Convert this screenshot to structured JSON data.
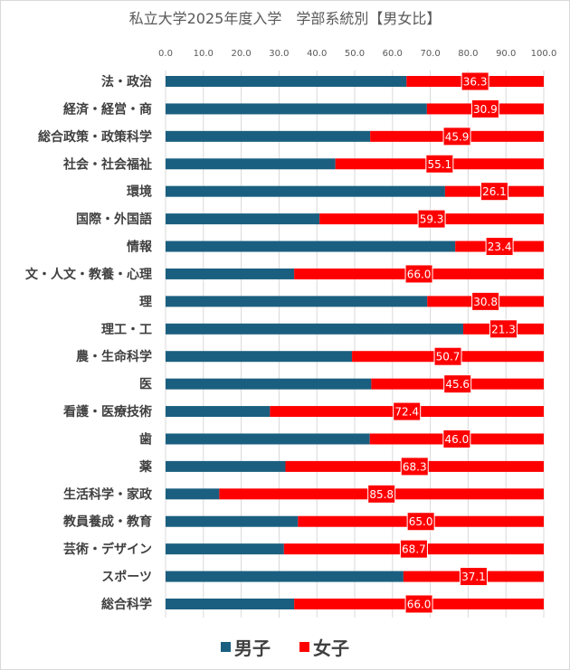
{
  "chart_data": {
    "type": "bar",
    "orientation": "horizontal",
    "stacked": "100%",
    "title": "私立大学2025年度入学　学部系統別【男女比】",
    "xlim": [
      0,
      100
    ],
    "xticks": [
      "0.0",
      "10.0",
      "20.0",
      "30.0",
      "40.0",
      "50.0",
      "60.0",
      "70.0",
      "80.0",
      "90.0",
      "100.0"
    ],
    "grid": true,
    "legend_position": "bottom",
    "categories": [
      "法・政治",
      "経済・経営・商",
      "総合政策・政策科学",
      "社会・社会福祉",
      "環境",
      "国際・外国語",
      "情報",
      "文・人文・教養・心理",
      "理",
      "理工・工",
      "農・生命科学",
      "医",
      "看護・医療技術",
      "歯",
      "薬",
      "生活科学・家政",
      "教員養成・教育",
      "芸術・デザイン",
      "スポーツ",
      "総合科学"
    ],
    "series": [
      {
        "name": "男子",
        "color": "#1b5f80",
        "values": [
          63.7,
          69.1,
          54.1,
          44.9,
          73.9,
          40.7,
          76.6,
          34.0,
          69.2,
          78.7,
          49.3,
          54.4,
          27.6,
          54.0,
          31.7,
          14.2,
          35.0,
          31.3,
          62.9,
          34.0
        ]
      },
      {
        "name": "女子",
        "color": "#ff0000",
        "values": [
          36.3,
          30.9,
          45.9,
          55.1,
          26.1,
          59.3,
          23.4,
          66.0,
          30.8,
          21.3,
          50.7,
          45.6,
          72.4,
          46.0,
          68.3,
          85.8,
          65.0,
          68.7,
          37.1,
          66.0
        ]
      }
    ],
    "data_labels": [
      "36.3",
      "30.9",
      "45.9",
      "55.1",
      "26.1",
      "59.3",
      "23.4",
      "66.0",
      "30.8",
      "21.3",
      "50.7",
      "45.6",
      "72.4",
      "46.0",
      "68.3",
      "85.8",
      "65.0",
      "68.7",
      "37.1",
      "66.0"
    ]
  }
}
